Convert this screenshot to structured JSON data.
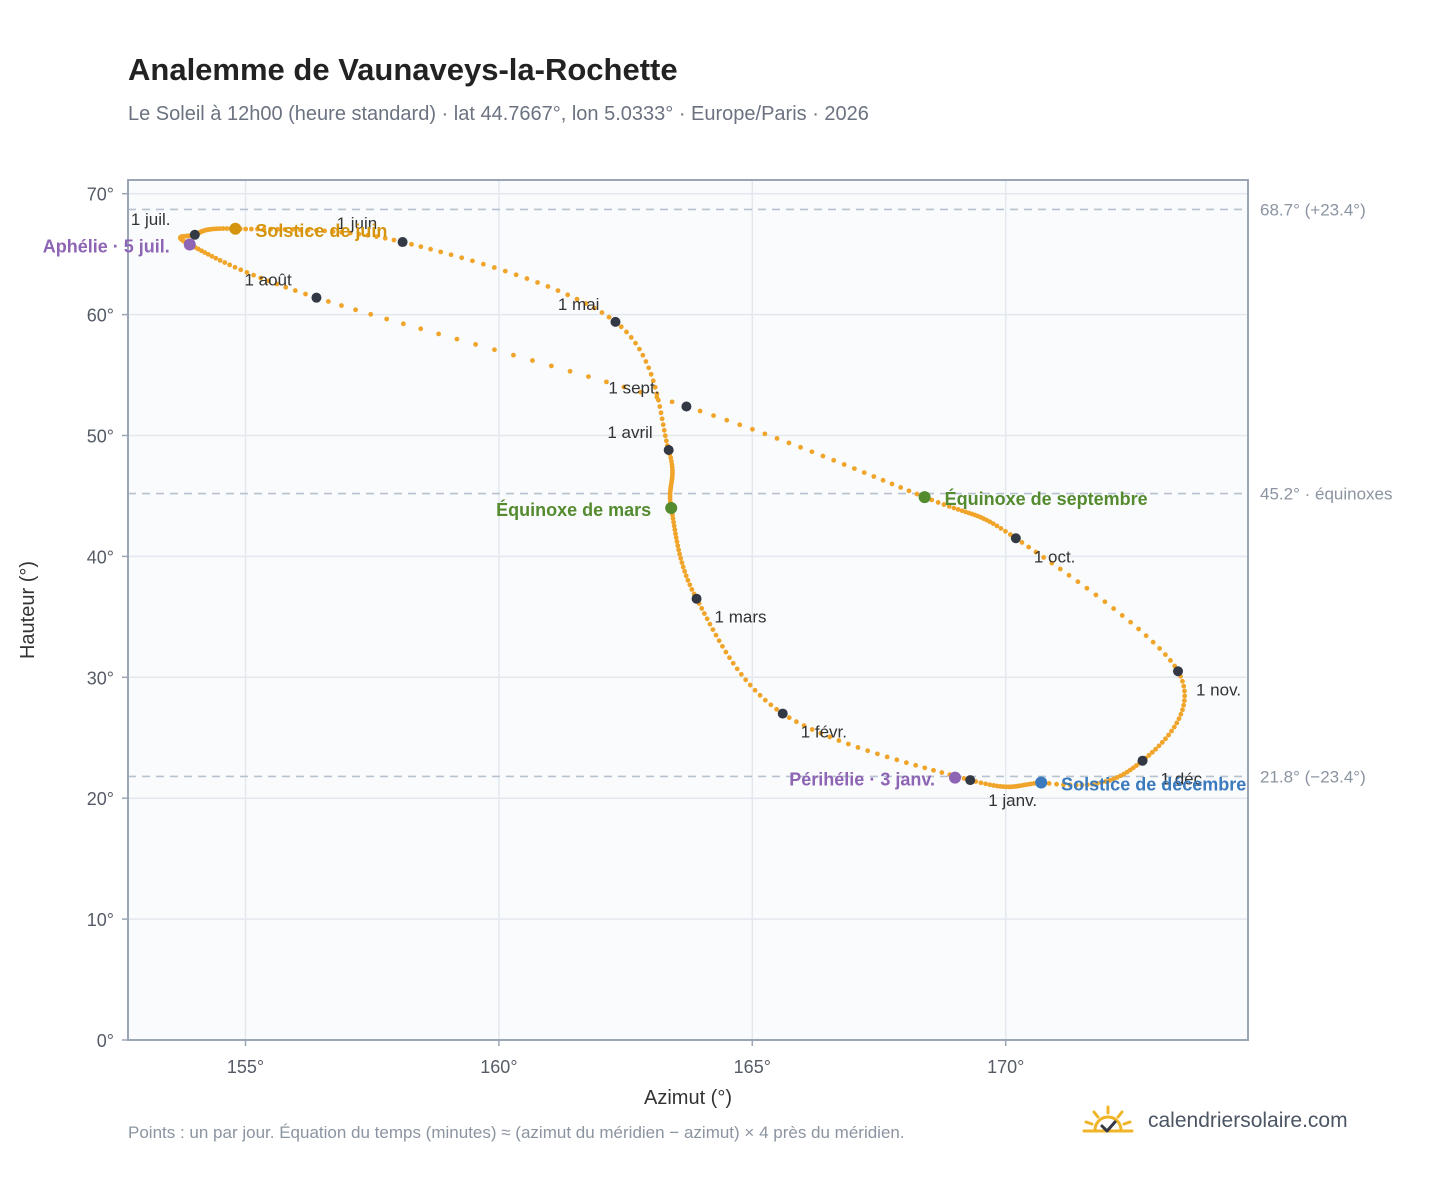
{
  "header": {
    "title": "Analemme de Vaunaveys-la-Rochette",
    "subtitle": "Le Soleil à 12h00 (heure standard) · lat 44.7667°, lon 5.0333° · Europe/Paris · 2026"
  },
  "footer": {
    "note": "Points : un par jour. Équation du temps (minutes) ≈ (azimut du méridien − azimut) × 4 près du méridien.",
    "brand": "calendriersolaire.com"
  },
  "colors": {
    "curve": "#f0a52a",
    "month_marker": "#333845",
    "solstice_june": "#d4940e",
    "solstice_december": "#3a7abd",
    "equinox": "#558b2f",
    "apsis": "#8e64b4",
    "reference_line": "#b7c2cf",
    "grid": "#e3e8ef",
    "plot_bg": "#f9fbfd",
    "frame": "#9aa6b6",
    "brand_icon": "#f0b429"
  },
  "icons": {
    "brand": "sun-check-icon"
  },
  "chart_data": {
    "type": "scatter",
    "xlabel": "Azimut (°)",
    "ylabel": "Hauteur (°)",
    "xlim": [
      152.7,
      174.6
    ],
    "ylim": [
      0,
      70.5
    ],
    "xticks": [
      155,
      160,
      165,
      170
    ],
    "xtick_labels": [
      "155°",
      "160°",
      "165°",
      "170°"
    ],
    "yticks": [
      0,
      10,
      20,
      30,
      40,
      50,
      60,
      70
    ],
    "ytick_labels": [
      "0°",
      "10°",
      "20°",
      "30°",
      "40°",
      "50°",
      "60°",
      "70°"
    ],
    "grid": true,
    "series": [
      {
        "points_per": "day",
        "path": [
          [
            169.3,
            21.5
          ],
          [
            165.6,
            27.0
          ],
          [
            163.9,
            36.5
          ],
          [
            163.4,
            44.0
          ],
          [
            163.35,
            48.8
          ],
          [
            162.3,
            59.4
          ],
          [
            158.1,
            66.0
          ],
          [
            154.8,
            67.1
          ],
          [
            154.0,
            66.6
          ],
          [
            153.9,
            65.8
          ],
          [
            156.4,
            61.4
          ],
          [
            163.7,
            52.4
          ],
          [
            168.4,
            44.9
          ],
          [
            170.2,
            41.5
          ],
          [
            173.4,
            30.5
          ],
          [
            172.7,
            23.1
          ],
          [
            170.7,
            21.3
          ],
          [
            169.3,
            21.5
          ]
        ]
      }
    ],
    "month_markers": [
      {
        "label": "1 janv.",
        "x": 169.3,
        "y": 21.5
      },
      {
        "label": "1 févr.",
        "x": 165.6,
        "y": 27.0
      },
      {
        "label": "1 mars",
        "x": 163.9,
        "y": 36.5
      },
      {
        "label": "1 avril",
        "x": 163.35,
        "y": 48.8
      },
      {
        "label": "1 mai",
        "x": 162.3,
        "y": 59.4
      },
      {
        "label": "1 juin",
        "x": 158.1,
        "y": 66.0
      },
      {
        "label": "1 juil.",
        "x": 154.0,
        "y": 66.6
      },
      {
        "label": "1 août",
        "x": 156.4,
        "y": 61.4
      },
      {
        "label": "1 sept.",
        "x": 163.7,
        "y": 52.4
      },
      {
        "label": "1 oct.",
        "x": 170.2,
        "y": 41.5
      },
      {
        "label": "1 nov.",
        "x": 173.4,
        "y": 30.5
      },
      {
        "label": "1 déc.",
        "x": 172.7,
        "y": 23.1
      }
    ],
    "events": [
      {
        "label": "Solstice de juin",
        "x": 154.8,
        "y": 67.1,
        "color": "#d4940e"
      },
      {
        "label": "Aphélie · 5 juil.",
        "x": 153.9,
        "y": 65.8,
        "color": "#8e64b4"
      },
      {
        "label": "Équinoxe de mars",
        "x": 163.4,
        "y": 44.0,
        "color": "#558b2f"
      },
      {
        "label": "Équinoxe de septembre",
        "x": 168.4,
        "y": 44.9,
        "color": "#558b2f"
      },
      {
        "label": "Périhélie · 3 janv.",
        "x": 169.0,
        "y": 21.7,
        "color": "#8e64b4"
      },
      {
        "label": "Solstice de décembre",
        "x": 170.7,
        "y": 21.3,
        "color": "#3a7abd"
      }
    ],
    "reference_lines": [
      {
        "y": 68.7,
        "label": "68.7° (+23.4°)"
      },
      {
        "y": 45.2,
        "label": "45.2° · équinoxes"
      },
      {
        "y": 21.8,
        "label": "21.8° (−23.4°)"
      }
    ]
  }
}
